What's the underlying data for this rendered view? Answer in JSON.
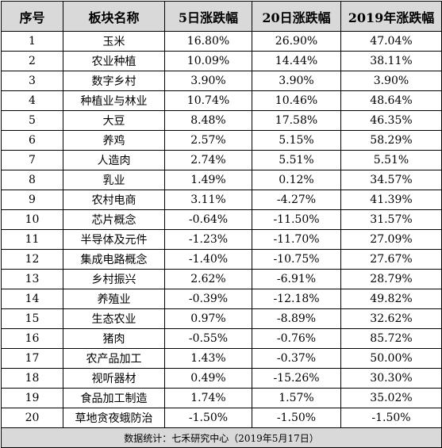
{
  "table": {
    "headers": [
      "序号",
      "板块名称",
      "5日涨跌幅",
      "20日涨跌幅",
      "2019年涨跌幅"
    ],
    "rows": [
      [
        "1",
        "玉米",
        "16.80%",
        "26.90%",
        "47.04%"
      ],
      [
        "2",
        "农业种植",
        "10.09%",
        "14.44%",
        "38.11%"
      ],
      [
        "3",
        "数字乡村",
        "3.90%",
        "3.90%",
        "3.90%"
      ],
      [
        "4",
        "种植业与林业",
        "10.74%",
        "10.46%",
        "48.64%"
      ],
      [
        "5",
        "大豆",
        "8.48%",
        "17.58%",
        "46.35%"
      ],
      [
        "6",
        "养鸡",
        "2.57%",
        "5.15%",
        "58.29%"
      ],
      [
        "7",
        "人造肉",
        "2.74%",
        "5.51%",
        "5.51%"
      ],
      [
        "8",
        "乳业",
        "1.49%",
        "0.12%",
        "34.57%"
      ],
      [
        "9",
        "农村电商",
        "3.11%",
        "-4.27%",
        "41.39%"
      ],
      [
        "10",
        "芯片概念",
        "-0.64%",
        "-11.50%",
        "31.57%"
      ],
      [
        "11",
        "半导体及元件",
        "-1.23%",
        "-11.70%",
        "27.09%"
      ],
      [
        "12",
        "集成电路概念",
        "-1.40%",
        "-10.75%",
        "27.67%"
      ],
      [
        "13",
        "乡村振兴",
        "2.62%",
        "-6.91%",
        "28.79%"
      ],
      [
        "14",
        "养殖业",
        "-0.39%",
        "-12.18%",
        "49.82%"
      ],
      [
        "15",
        "生态农业",
        "0.97%",
        "-8.89%",
        "32.62%"
      ],
      [
        "16",
        "猪肉",
        "-0.55%",
        "-0.76%",
        "85.72%"
      ],
      [
        "17",
        "农产品加工",
        "1.43%",
        "-0.37%",
        "50.00%"
      ],
      [
        "18",
        "视听器材",
        "0.49%",
        "-15.26%",
        "30.30%"
      ],
      [
        "19",
        "食品加工制造",
        "1.74%",
        "1.57%",
        "35.02%"
      ],
      [
        "20",
        "草地贪夜蛾防治",
        "-1.50%",
        "-1.50%",
        "-1.50%"
      ]
    ],
    "footer": "数据统计：七禾研究中心（2019年5月17日）"
  },
  "colors": {
    "header_bg": "#d9d9d9",
    "footer_bg": "#d9d9d9",
    "border": "#000000"
  }
}
